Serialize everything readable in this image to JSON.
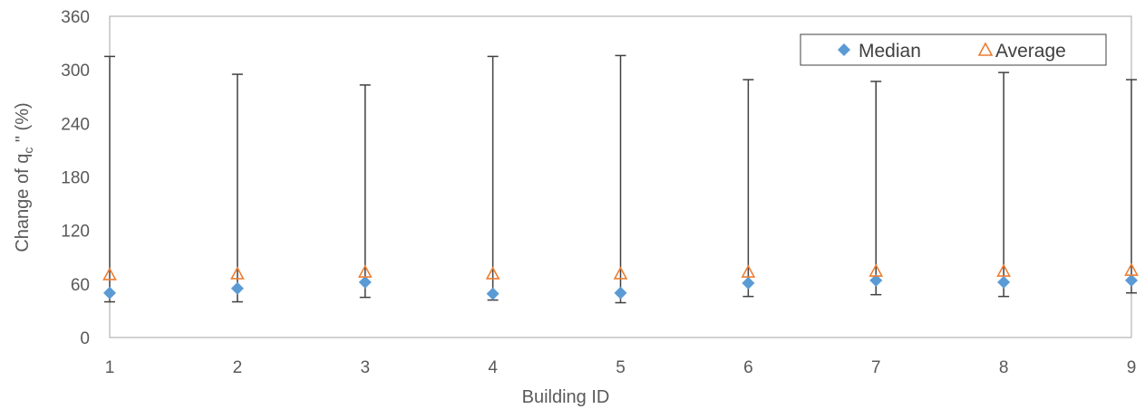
{
  "chart_data": {
    "type": "scatter",
    "xlabel": "Building ID",
    "ylabel": {
      "prefix": "Change of q",
      "subscript": "c",
      "suffix": " \" (%)"
    },
    "ylim": [
      0,
      360
    ],
    "yticks": [
      0,
      60,
      120,
      180,
      240,
      300,
      360
    ],
    "categories": [
      "1",
      "2",
      "3",
      "4",
      "5",
      "6",
      "7",
      "8",
      "9"
    ],
    "series": [
      {
        "name": "Median",
        "marker": "diamond",
        "color": "#5B9BD5",
        "values": [
          50,
          55,
          62,
          49,
          50,
          61,
          64,
          62,
          64
        ]
      },
      {
        "name": "Average",
        "marker": "triangle-open",
        "color": "#ED7D31",
        "values": [
          70,
          71,
          73,
          71,
          71,
          73,
          74,
          74,
          75
        ]
      }
    ],
    "error_bars": {
      "color": "#404040",
      "low": [
        40,
        40,
        45,
        42,
        39,
        46,
        48,
        46,
        50
      ],
      "high": [
        315,
        295,
        283,
        315,
        316,
        289,
        287,
        297,
        289
      ]
    },
    "legend_position": "top-right",
    "grid": false
  }
}
